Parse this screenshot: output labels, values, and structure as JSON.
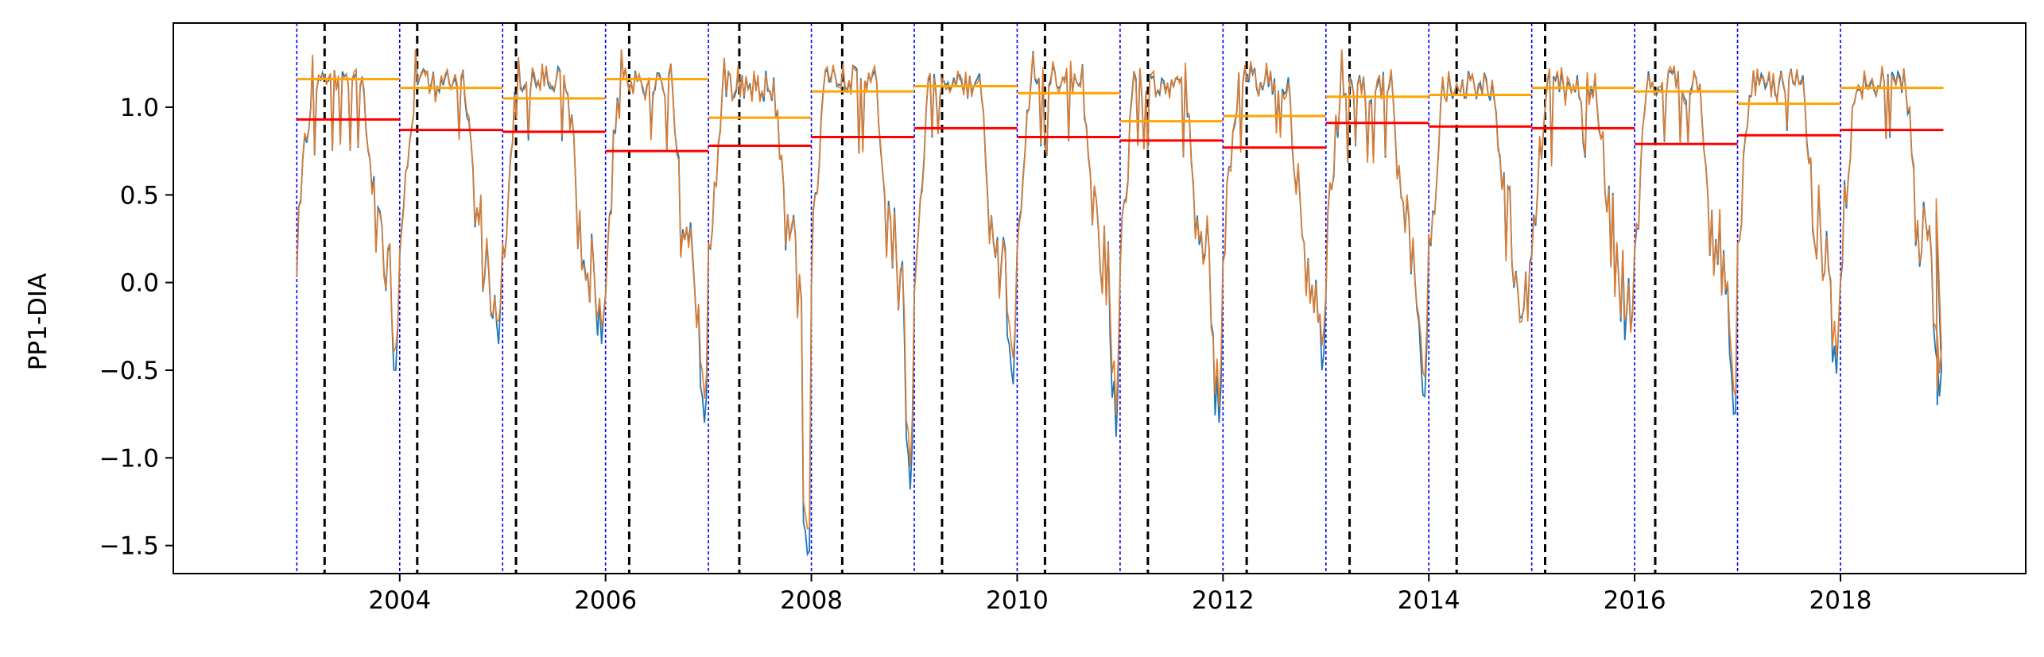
{
  "chart_data": {
    "type": "line",
    "title": "",
    "xlabel": "",
    "ylabel": "PP1-DIA",
    "xlim": [
      2001.8,
      2019.8
    ],
    "ylim": [
      -1.66,
      1.48
    ],
    "grid": false,
    "x_ticks": [
      {
        "value": 2004,
        "label": "2004"
      },
      {
        "value": 2006,
        "label": "2006"
      },
      {
        "value": 2008,
        "label": "2008"
      },
      {
        "value": 2010,
        "label": "2010"
      },
      {
        "value": 2012,
        "label": "2012"
      },
      {
        "value": 2014,
        "label": "2014"
      },
      {
        "value": 2016,
        "label": "2016"
      },
      {
        "value": 2018,
        "label": "2018"
      }
    ],
    "y_ticks": [
      {
        "value": 1.0,
        "label": "1.0"
      },
      {
        "value": 0.5,
        "label": "0.5"
      },
      {
        "value": 0.0,
        "label": "0.0"
      },
      {
        "value": -0.5,
        "label": "−0.5"
      },
      {
        "value": -1.0,
        "label": "−1.0"
      },
      {
        "value": -1.5,
        "label": "−1.5"
      }
    ],
    "year_boundaries": [
      2003,
      2004,
      2005,
      2006,
      2007,
      2008,
      2009,
      2010,
      2011,
      2012,
      2013,
      2014,
      2015,
      2016,
      2017,
      2018
    ],
    "event_dates": [
      2003.27,
      2004.17,
      2005.13,
      2006.23,
      2007.3,
      2008.3,
      2009.27,
      2010.27,
      2011.27,
      2012.23,
      2013.23,
      2014.27,
      2015.13,
      2016.2
    ],
    "yearly_orange": [
      1.16,
      1.11,
      1.05,
      1.16,
      0.94,
      1.09,
      1.12,
      1.08,
      0.92,
      0.95,
      1.06,
      1.07,
      1.11,
      1.09,
      1.02,
      1.11
    ],
    "yearly_red": [
      0.93,
      0.87,
      0.86,
      0.75,
      0.78,
      0.83,
      0.88,
      0.83,
      0.81,
      0.77,
      0.91,
      0.89,
      0.88,
      0.79,
      0.84,
      0.87
    ],
    "yearly_minima": [
      -0.5,
      -0.35,
      -0.35,
      -0.8,
      -1.55,
      -1.18,
      -0.58,
      -0.88,
      -0.8,
      -0.5,
      -0.65,
      -0.2,
      -0.28,
      -0.75,
      -0.52,
      -0.65
    ],
    "series_end": {
      "x": 2018.95,
      "values": [
        0.4,
        -0.7,
        -0.48
      ]
    },
    "colors": {
      "series_blue": "#1f77b4",
      "series_orange": "#e07c2e",
      "yearly_orange": "#ffa500",
      "yearly_red": "#ff0000",
      "year_boundary": "#0000ff",
      "event_line": "#000000"
    }
  }
}
